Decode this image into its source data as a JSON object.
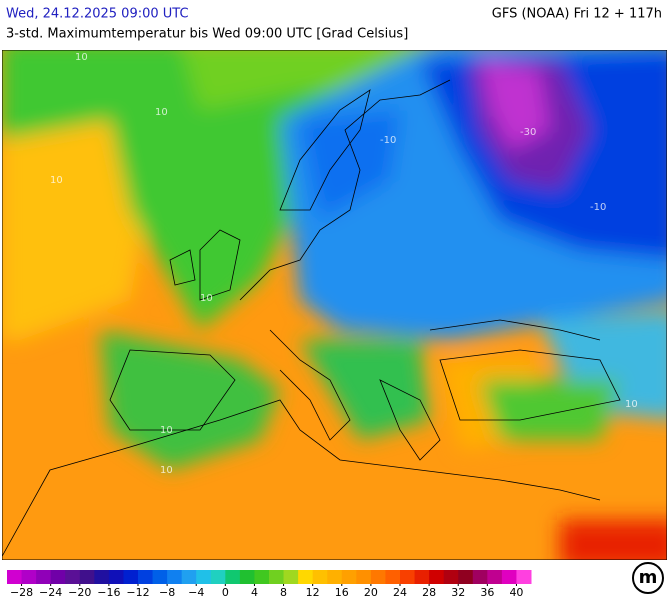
{
  "header": {
    "left": "Wed, 24.12.2025 09:00 UTC",
    "right": "GFS (NOAA) Fri 12 + 117h",
    "subtitle": "3-std. Maximumtemperatur bis Wed 09:00 UTC [Grad Celsius]"
  },
  "map": {
    "contour_labels": [
      "10",
      "10",
      "10",
      "-10",
      "-30",
      "-10",
      "10",
      "10",
      "10",
      "10"
    ]
  },
  "legend": {
    "range": [
      -30,
      42
    ],
    "colors": [
      "#d000d0",
      "#b000c8",
      "#9000b8",
      "#7000a8",
      "#5a1096",
      "#40108c",
      "#2010a0",
      "#1010b8",
      "#0020d0",
      "#0040e0",
      "#0060e8",
      "#1080f0",
      "#20a0f0",
      "#20c0e8",
      "#20d0c0",
      "#10c870",
      "#20c030",
      "#40c820",
      "#70d020",
      "#a0d820",
      "#ffd800",
      "#ffc000",
      "#ffb000",
      "#ffa000",
      "#ff9000",
      "#ff7800",
      "#ff6000",
      "#f84000",
      "#e82000",
      "#d00000",
      "#b00010",
      "#900020",
      "#a00060",
      "#c00090",
      "#e000c0",
      "#ff40e0"
    ],
    "ticks": [
      {
        "value": -28,
        "label": "−28"
      },
      {
        "value": -24,
        "label": "−24"
      },
      {
        "value": -20,
        "label": "−20"
      },
      {
        "value": -16,
        "label": "−16"
      },
      {
        "value": -12,
        "label": "−12"
      },
      {
        "value": -8,
        "label": "−8"
      },
      {
        "value": -4,
        "label": "−4"
      },
      0,
      4,
      8,
      12,
      16,
      20,
      24,
      28,
      32,
      36,
      40
    ]
  },
  "logo": "m"
}
